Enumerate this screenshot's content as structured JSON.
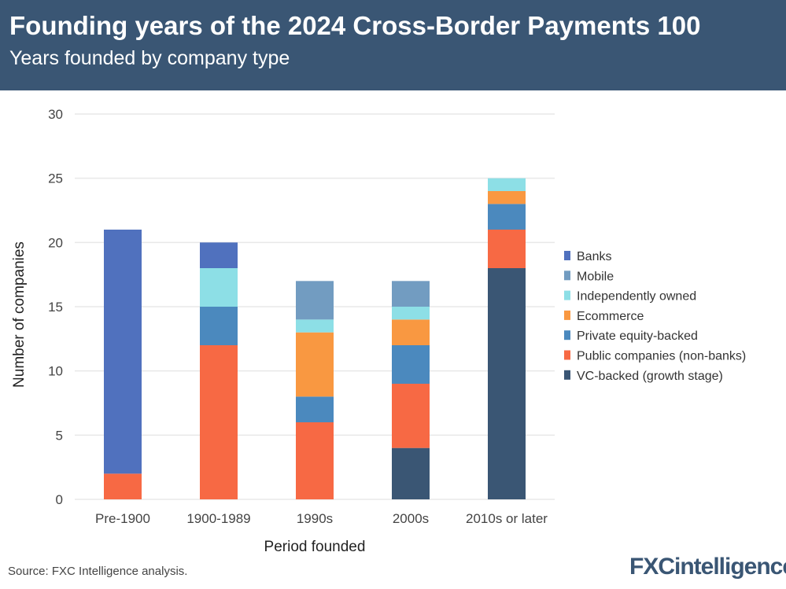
{
  "header": {
    "title": "Founding years of the 2024 Cross-Border Payments 100",
    "subtitle": "Years founded by company type"
  },
  "source": "Source: FXC Intelligence analysis.",
  "logo": "FXCintelligence",
  "chart_data": {
    "type": "bar",
    "stacked": true,
    "xlabel": "Period founded",
    "ylabel": "Number of companies",
    "ylim": [
      0,
      30
    ],
    "yticks": [
      0,
      5,
      10,
      15,
      20,
      25,
      30
    ],
    "grid": true,
    "legend": "right",
    "categories": [
      "Pre-1900",
      "1900-1989",
      "1990s",
      "2000s",
      "2010s or later"
    ],
    "series": [
      {
        "name": "VC-backed (growth stage)",
        "color": "#3a5674",
        "values": [
          0,
          0,
          0,
          4,
          18
        ]
      },
      {
        "name": "Public companies (non-banks)",
        "color": "#f76944",
        "values": [
          2,
          12,
          6,
          5,
          3
        ]
      },
      {
        "name": "Private equity-backed",
        "color": "#4b89be",
        "values": [
          0,
          3,
          2,
          3,
          2
        ]
      },
      {
        "name": "Ecommerce",
        "color": "#f99841",
        "values": [
          0,
          0,
          5,
          2,
          1
        ]
      },
      {
        "name": "Independently owned",
        "color": "#8ddfe6",
        "values": [
          0,
          3,
          1,
          1,
          1
        ]
      },
      {
        "name": "Mobile",
        "color": "#729cc1",
        "values": [
          0,
          0,
          3,
          2,
          0
        ]
      },
      {
        "name": "Banks",
        "color": "#5071be",
        "values": [
          19,
          2,
          0,
          0,
          0
        ]
      }
    ]
  }
}
